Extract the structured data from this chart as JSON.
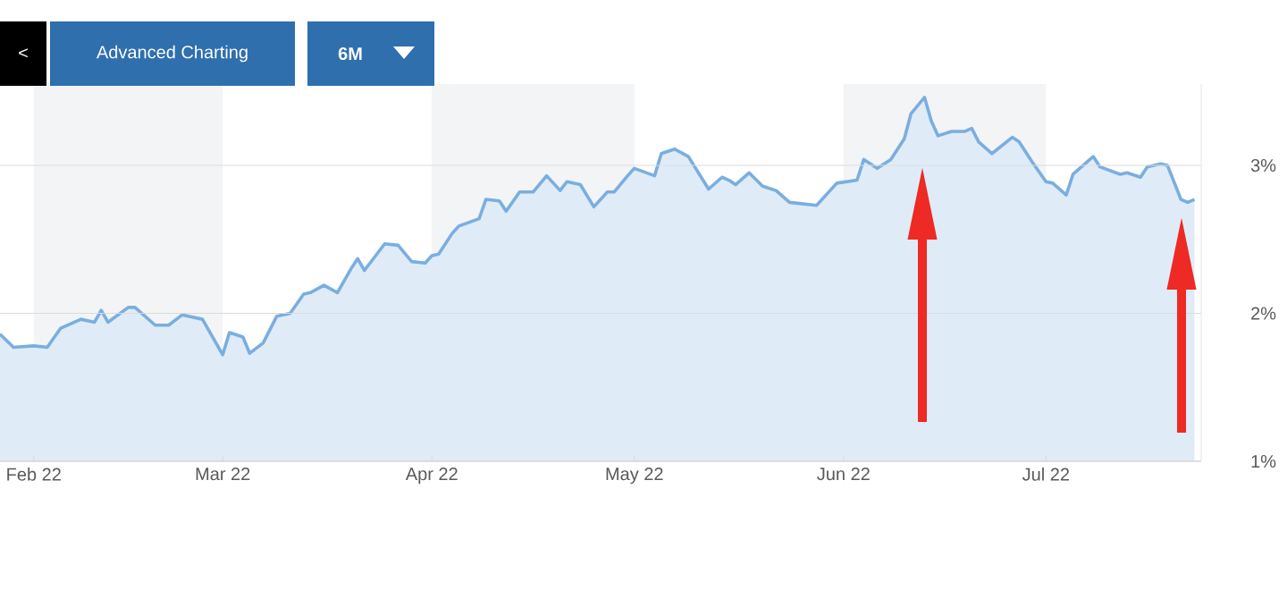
{
  "chart_data": {
    "type": "area",
    "color": "#7aaee0",
    "annotations": [
      "<",
      "Advanced Charting",
      "6M"
    ],
    "x": [
      "2022-01-27",
      "2022-01-29",
      "2022-02-01",
      "2022-02-03",
      "2022-02-05",
      "2022-02-08",
      "2022-02-10",
      "2022-02-11",
      "2022-02-12",
      "2022-02-15",
      "2022-02-16",
      "2022-02-19",
      "2022-02-21",
      "2022-02-23",
      "2022-02-26",
      "2022-03-01",
      "2022-03-02",
      "2022-03-04",
      "2022-03-05",
      "2022-03-07",
      "2022-03-09",
      "2022-03-11",
      "2022-03-13",
      "2022-03-14",
      "2022-03-16",
      "2022-03-18",
      "2022-03-20",
      "2022-03-21",
      "2022-03-22",
      "2022-03-25",
      "2022-03-27",
      "2022-03-29",
      "2022-03-31",
      "2022-04-01",
      "2022-04-02",
      "2022-04-04",
      "2022-04-05",
      "2022-04-08",
      "2022-04-09",
      "2022-04-11",
      "2022-04-12",
      "2022-04-14",
      "2022-04-16",
      "2022-04-18",
      "2022-04-20",
      "2022-04-21",
      "2022-04-23",
      "2022-04-25",
      "2022-04-27",
      "2022-04-28",
      "2022-04-30",
      "2022-05-01",
      "2022-05-04",
      "2022-05-05",
      "2022-05-07",
      "2022-05-09",
      "2022-05-12",
      "2022-05-14",
      "2022-05-15",
      "2022-05-16",
      "2022-05-18",
      "2022-05-20",
      "2022-05-22",
      "2022-05-24",
      "2022-05-28",
      "2022-05-31",
      "2022-06-03",
      "2022-06-04",
      "2022-06-06",
      "2022-06-08",
      "2022-06-10",
      "2022-06-11",
      "2022-06-13",
      "2022-06-14",
      "2022-06-15",
      "2022-06-17",
      "2022-06-19",
      "2022-06-20",
      "2022-06-21",
      "2022-06-23",
      "2022-06-26",
      "2022-06-27",
      "2022-06-29",
      "2022-07-01",
      "2022-07-02",
      "2022-07-04",
      "2022-07-05",
      "2022-07-08",
      "2022-07-09",
      "2022-07-12",
      "2022-07-13",
      "2022-07-15",
      "2022-07-16",
      "2022-07-18",
      "2022-07-19",
      "2022-07-21",
      "2022-07-22",
      "2022-07-23"
    ],
    "values": [
      1.86,
      1.77,
      1.78,
      1.77,
      1.9,
      1.96,
      1.94,
      2.02,
      1.94,
      2.04,
      2.04,
      1.92,
      1.92,
      1.99,
      1.96,
      1.72,
      1.87,
      1.84,
      1.73,
      1.8,
      1.98,
      2.0,
      2.13,
      2.14,
      2.19,
      2.14,
      2.3,
      2.37,
      2.29,
      2.47,
      2.46,
      2.35,
      2.34,
      2.39,
      2.4,
      2.54,
      2.59,
      2.64,
      2.77,
      2.76,
      2.69,
      2.82,
      2.82,
      2.93,
      2.83,
      2.89,
      2.87,
      2.72,
      2.82,
      2.82,
      2.93,
      2.98,
      2.93,
      3.08,
      3.11,
      3.06,
      2.84,
      2.92,
      2.9,
      2.87,
      2.95,
      2.86,
      2.83,
      2.75,
      2.73,
      2.88,
      2.9,
      3.04,
      2.98,
      3.04,
      3.18,
      3.35,
      3.46,
      3.3,
      3.2,
      3.23,
      3.23,
      3.25,
      3.16,
      3.08,
      3.19,
      3.16,
      3.02,
      2.89,
      2.88,
      2.8,
      2.94,
      3.06,
      2.99,
      2.94,
      2.95,
      2.92,
      2.99,
      3.01,
      3.0,
      2.77,
      2.75,
      2.77
    ],
    "xlim": [
      "2022-01-27",
      "2022-07-24"
    ],
    "xticks": [
      {
        "value": "2022-02-01",
        "label": "Feb 22"
      },
      {
        "value": "2022-03-01",
        "label": "Mar 22"
      },
      {
        "value": "2022-04-01",
        "label": "Apr 22"
      },
      {
        "value": "2022-05-01",
        "label": "May 22"
      },
      {
        "value": "2022-06-01",
        "label": "Jun 22"
      },
      {
        "value": "2022-07-01",
        "label": "Jul 22"
      }
    ],
    "ylim": [
      1,
      3.55
    ],
    "yticks": [
      {
        "value": 1,
        "label": "1%"
      },
      {
        "value": 2,
        "label": "2%"
      },
      {
        "value": 3,
        "label": "3%"
      }
    ],
    "grid": "y",
    "bands": [
      {
        "axis": "x",
        "from": "2022-02-01",
        "to": "2022-03-01",
        "color": "#f3f4f6"
      },
      {
        "axis": "x",
        "from": "2022-04-01",
        "to": "2022-05-01",
        "color": "#f3f4f6"
      },
      {
        "axis": "x",
        "from": "2022-06-01",
        "to": "2022-07-01",
        "color": "#f3f4f6"
      }
    ]
  }
}
